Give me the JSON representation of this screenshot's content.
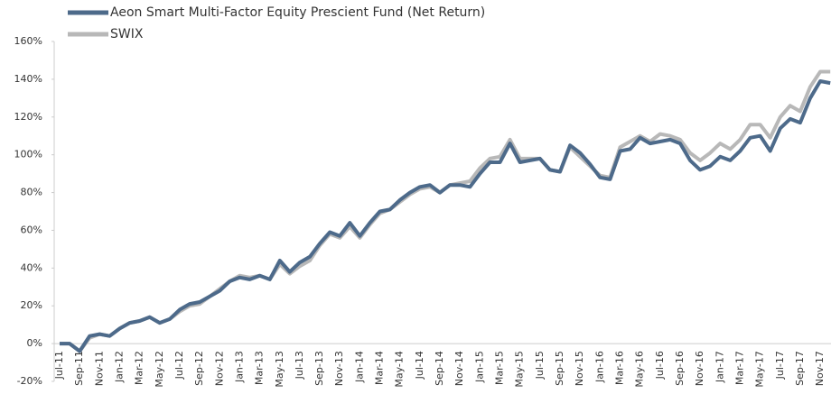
{
  "chart_data": {
    "type": "line",
    "categories": [
      "Jul-11",
      null,
      "Sep-11",
      null,
      "Nov-11",
      null,
      "Jan-12",
      null,
      "Mar-12",
      null,
      "May-12",
      null,
      "Jul-12",
      null,
      "Sep-12",
      null,
      "Nov-12",
      null,
      "Jan-13",
      null,
      "Mar-13",
      null,
      "May-13",
      null,
      "Jul-13",
      null,
      "Sep-13",
      null,
      "Nov-13",
      null,
      "Jan-14",
      null,
      "Mar-14",
      null,
      "May-14",
      null,
      "Jul-14",
      null,
      "Sep-14",
      null,
      "Nov-14",
      null,
      "Jan-15",
      null,
      "Mar-15",
      null,
      "May-15",
      null,
      "Jul-15",
      null,
      "Sep-15",
      null,
      "Nov-15",
      null,
      "Jan-16",
      null,
      "Mar-16",
      null,
      "May-16",
      null,
      "Jul-16",
      null,
      "Sep-16",
      null,
      "Nov-16",
      null,
      "Jan-17",
      null,
      "Mar-17",
      null,
      "May-17",
      null,
      "Jul-17",
      null,
      "Sep-17",
      null,
      "Nov-17",
      null
    ],
    "series": [
      {
        "name": "Aeon Smart Multi-Factor Equity Prescient Fund (Net Return)",
        "color": "#4d6a8a",
        "values": [
          0,
          0,
          -4,
          4,
          5,
          4,
          8,
          11,
          12,
          14,
          11,
          13,
          18,
          21,
          22,
          25,
          28,
          33,
          35,
          34,
          36,
          34,
          44,
          38,
          43,
          46,
          53,
          59,
          57,
          64,
          57,
          64,
          70,
          71,
          76,
          80,
          83,
          84,
          80,
          84,
          84,
          83,
          90,
          96,
          96,
          106,
          96,
          97,
          98,
          92,
          91,
          105,
          101,
          95,
          88,
          87,
          102,
          103,
          109,
          106,
          107,
          108,
          106,
          97,
          92,
          94,
          99,
          97,
          102,
          109,
          110,
          102,
          114,
          119,
          117,
          130,
          139,
          138
        ]
      },
      {
        "name": "SWIX",
        "color": "#b8b8b8",
        "values": [
          0,
          0,
          -4,
          3,
          5,
          4,
          8,
          11,
          12,
          14,
          11,
          13,
          17,
          20,
          21,
          25,
          29,
          33,
          36,
          35,
          36,
          34,
          42,
          37,
          41,
          44,
          52,
          58,
          56,
          62,
          56,
          63,
          69,
          71,
          75,
          79,
          82,
          83,
          80,
          84,
          85,
          86,
          93,
          98,
          99,
          108,
          98,
          98,
          98,
          92,
          91,
          104,
          99,
          94,
          89,
          88,
          104,
          107,
          110,
          107,
          111,
          110,
          108,
          101,
          97,
          101,
          106,
          103,
          108,
          116,
          116,
          109,
          120,
          126,
          123,
          136,
          144,
          144
        ]
      }
    ],
    "ylim": [
      -20,
      160
    ],
    "yticks": [
      {
        "value": -20,
        "label": "-20%"
      },
      {
        "value": 0,
        "label": "0%"
      },
      {
        "value": 20,
        "label": "20%"
      },
      {
        "value": 40,
        "label": "40%"
      },
      {
        "value": 60,
        "label": "60%"
      },
      {
        "value": 80,
        "label": "80%"
      },
      {
        "value": 100,
        "label": "100%"
      },
      {
        "value": 120,
        "label": "120%"
      },
      {
        "value": 140,
        "label": "140%"
      },
      {
        "value": 160,
        "label": "160%"
      }
    ],
    "legend": "top-left"
  }
}
